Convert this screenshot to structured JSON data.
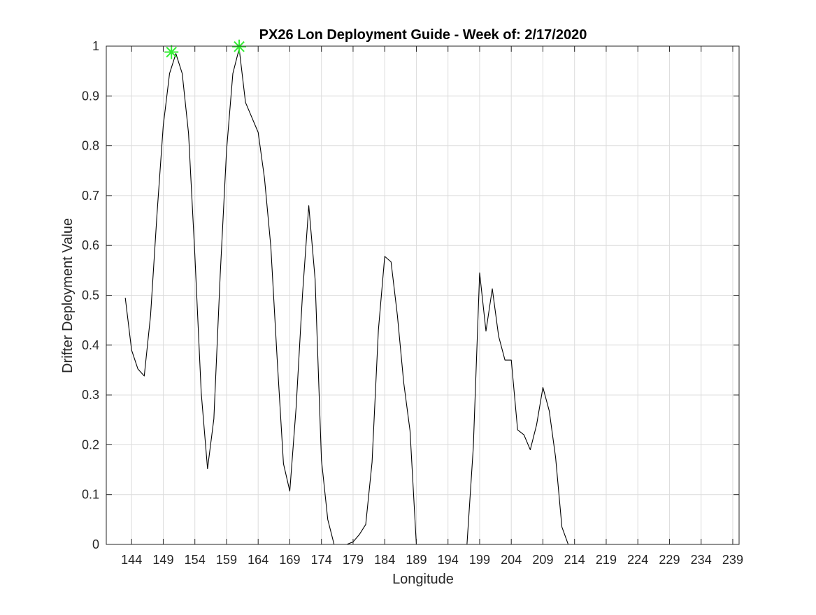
{
  "chart_data": {
    "type": "line",
    "title": "PX26 Lon Deployment Guide - Week of: 2/17/2020",
    "xlabel": "Longitude",
    "ylabel": "Drifter Deployment Value",
    "xlim": [
      140,
      240
    ],
    "ylim": [
      0,
      1
    ],
    "xticks": [
      144,
      149,
      154,
      159,
      164,
      169,
      174,
      179,
      184,
      189,
      194,
      199,
      204,
      209,
      214,
      219,
      224,
      229,
      234,
      239
    ],
    "yticks": [
      0,
      0.1,
      0.2,
      0.3,
      0.4,
      0.5,
      0.6,
      0.7,
      0.8,
      0.9,
      1
    ],
    "ytick_labels": [
      "0",
      "0.1",
      "0.2",
      "0.3",
      "0.4",
      "0.5",
      "0.6",
      "0.7",
      "0.8",
      "0.9",
      "1"
    ],
    "grid": true,
    "series": [
      {
        "color": "#000000",
        "x": [
          143,
          144,
          145,
          146,
          147,
          148,
          149,
          150,
          151,
          152,
          153,
          154,
          155,
          156,
          157,
          158,
          159,
          160,
          161,
          162,
          163,
          164,
          165,
          166,
          167,
          168,
          169,
          170,
          171,
          172,
          173,
          174,
          175,
          176,
          177,
          178,
          179,
          180,
          181,
          182,
          183,
          184,
          185,
          186,
          187,
          188,
          189,
          190,
          191,
          192,
          193,
          194,
          195,
          196,
          197,
          198,
          199,
          200,
          201,
          202,
          203,
          204,
          205,
          206,
          207,
          208,
          209,
          210,
          211,
          212,
          213,
          214,
          215,
          216,
          217,
          218,
          219,
          220,
          221,
          222,
          223,
          224,
          225,
          226,
          227,
          228,
          229,
          230,
          231,
          232,
          233,
          234,
          235,
          236,
          237
        ],
        "y": [
          0.495,
          0.39,
          0.352,
          0.338,
          0.46,
          0.66,
          0.84,
          0.945,
          0.985,
          0.945,
          0.825,
          0.58,
          0.305,
          0.152,
          0.252,
          0.54,
          0.79,
          0.945,
          0.995,
          0.887,
          0.857,
          0.827,
          0.735,
          0.598,
          0.373,
          0.162,
          0.107,
          0.275,
          0.5,
          0.68,
          0.532,
          0.17,
          0.05,
          0.0,
          0.0,
          0.0,
          0.005,
          0.02,
          0.04,
          0.165,
          0.43,
          0.578,
          0.567,
          0.46,
          0.325,
          0.228,
          0.0,
          0.0,
          0.0,
          0.0,
          0.0,
          0.0,
          0.0,
          0.0,
          0.0,
          0.195,
          0.545,
          0.428,
          0.513,
          0.418,
          0.37,
          0.37,
          0.23,
          0.22,
          0.19,
          0.24,
          0.315,
          0.268,
          0.175,
          0.035,
          0.0,
          0.0,
          0.0,
          0.0,
          0.0,
          0.0,
          0.0,
          0.0,
          0.0,
          0.0,
          0.0,
          0.0,
          0.0,
          0.0,
          0.0,
          0.0,
          0.0,
          0.0,
          0.0,
          0.0,
          0.0,
          0.0,
          0.0,
          0.0,
          0.0
        ]
      }
    ],
    "markers": {
      "color": "#33ee33",
      "symbol": "asterisk",
      "points": [
        {
          "x": 150.3,
          "y": 0.988
        },
        {
          "x": 161.0,
          "y": 0.999
        }
      ]
    }
  }
}
